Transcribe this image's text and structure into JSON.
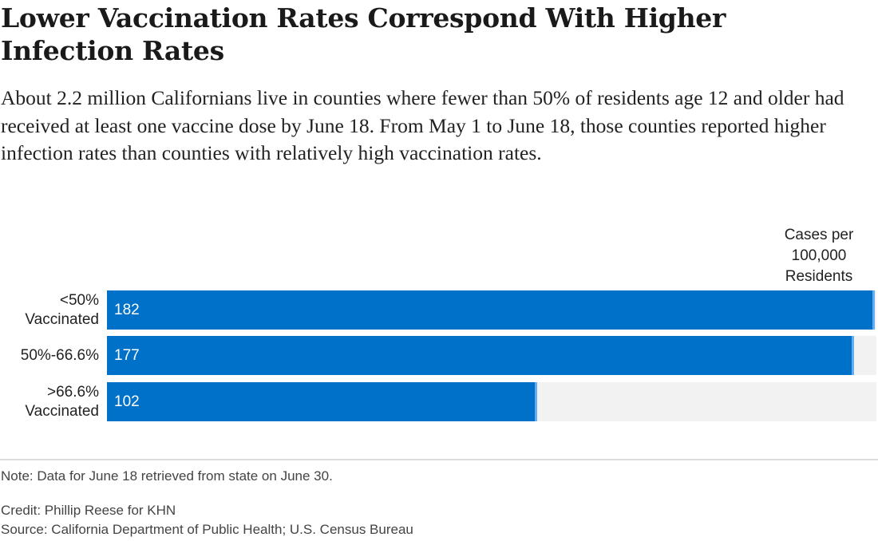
{
  "chart_data": {
    "type": "bar",
    "orientation": "horizontal",
    "title": "Lower Vaccination Rates Correspond With Higher Infection Rates",
    "subtitle": "About 2.2 million Californians live in counties where fewer than 50% of residents age 12 and older had received at least one vaccine dose by June 18. From May 1 to June 18, those counties reported higher infection rates than counties with relatively high vaccination rates.",
    "value_label": [
      "Cases per",
      "100,000",
      "Residents"
    ],
    "categories": [
      [
        "<50%",
        "Vaccinated"
      ],
      [
        "50%-66.6%"
      ],
      [
        ">66.6%",
        "Vaccinated"
      ]
    ],
    "values": [
      182,
      177,
      102
    ],
    "data_labels": [
      "182",
      "177",
      "102"
    ],
    "xlim": [
      0,
      182
    ],
    "grid": false,
    "legend": "none",
    "colors": {
      "bar": "#0071c8",
      "bar_edge": "#63adf2",
      "track": "#f2f2f2"
    }
  },
  "footer": {
    "note": "Note: Data for June 18 retrieved from state on June 30.",
    "credit": "Credit: Phillip Reese for KHN",
    "source": "Source: California Department of Public Health; U.S. Census Bureau"
  }
}
